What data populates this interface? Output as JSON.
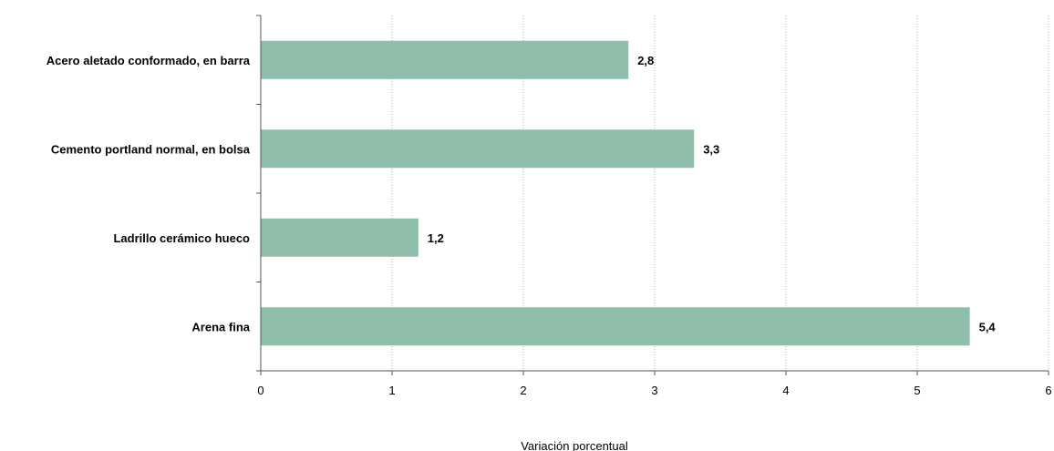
{
  "chart_data": {
    "type": "bar",
    "orientation": "horizontal",
    "categories": [
      "Acero aletado conformado, en barra",
      "Cemento portland normal, en bolsa",
      "Ladrillo cerámico hueco",
      "Arena fina"
    ],
    "values": [
      2.8,
      3.3,
      1.2,
      5.4
    ],
    "value_labels": [
      "2,8",
      "3,3",
      "1,2",
      "5,4"
    ],
    "xlabel": "Variación porcentual",
    "xlim": [
      0,
      6
    ],
    "xticks": [
      0,
      1,
      2,
      3,
      4,
      5,
      6
    ],
    "xtick_labels": [
      "0",
      "1",
      "2",
      "3",
      "4",
      "5",
      "6"
    ],
    "grid": "vertical dotted",
    "bar_color": "#8fbfaa",
    "grid_color": "#b0b0b0",
    "axis_color": "#555555"
  }
}
